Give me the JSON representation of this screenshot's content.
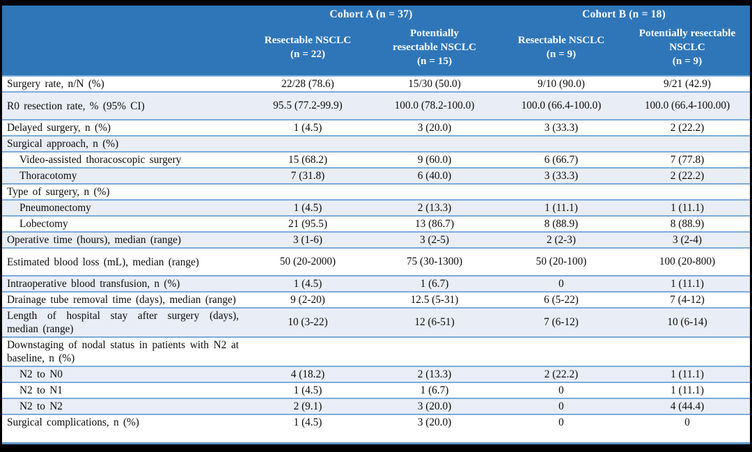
{
  "table": {
    "colors": {
      "header_bg": "#2F76B8",
      "header_text": "#FFFFFF",
      "stripe_row": "#E9EDF6",
      "row_border": "#7AABDB",
      "frame_border": "#000000",
      "body_text": "#0C0C0C"
    },
    "col_groups": [
      {
        "label": "Cohort A (n = 37)"
      },
      {
        "label": "Cohort B (n = 18)"
      }
    ],
    "col_headers": [
      {
        "lines": [
          "Resectable NSCLC",
          "(n = 22)"
        ]
      },
      {
        "lines": [
          "Potentially",
          "resectable NSCLC",
          "(n = 15)"
        ]
      },
      {
        "lines": [
          "Resectable NSCLC",
          "(n = 9)"
        ]
      },
      {
        "lines": [
          "Potentially resectable",
          "NSCLC",
          "(n = 9)"
        ]
      }
    ],
    "rows": [
      {
        "label": "Surgery rate, n/N (%)",
        "indent": false,
        "values": [
          "22/28 (78.6)",
          "15/30 (50.0)",
          "9/10 (90.0)",
          "9/21 (42.9)"
        ]
      },
      {
        "label": "R0 resection rate, % (95% CI)",
        "indent": false,
        "values": [
          "95.5 (77.2-99.9)",
          "100.0 (78.2-100.0)",
          "100.0 (66.4-100.0)",
          "100.0 (66.4-100.00)"
        ]
      },
      {
        "label": "Delayed surgery, n (%)",
        "indent": false,
        "values": [
          "1 (4.5)",
          "3 (20.0)",
          "3 (33.3)",
          "2 (22.2)"
        ]
      },
      {
        "label": "Surgical approach, n (%)",
        "indent": false,
        "values": [
          "",
          "",
          "",
          ""
        ]
      },
      {
        "label": "Video-assisted thoracoscopic surgery",
        "indent": true,
        "values": [
          "15 (68.2)",
          "9 (60.0)",
          "6 (66.7)",
          "7 (77.8)"
        ]
      },
      {
        "label": "Thoracotomy",
        "indent": true,
        "values": [
          "7 (31.8)",
          "6 (40.0)",
          "3 (33.3)",
          "2 (22.2)"
        ]
      },
      {
        "label": "Type of surgery, n (%)",
        "indent": false,
        "values": [
          "",
          "",
          "",
          ""
        ]
      },
      {
        "label": "Pneumonectomy",
        "indent": true,
        "values": [
          "1 (4.5)",
          "2 (13.3)",
          "1 (11.1)",
          "1 (11.1)"
        ]
      },
      {
        "label": "Lobectomy",
        "indent": true,
        "values": [
          "21 (95.5)",
          "13 (86.7)",
          "8 (88.9)",
          "8 (88.9)"
        ]
      },
      {
        "label": "Operative time (hours), median (range)",
        "indent": false,
        "values": [
          "3 (1-6)",
          "3 (2-5)",
          "2 (2-3)",
          "3 (2-4)"
        ]
      },
      {
        "label": "Estimated blood loss (mL), median (range)",
        "indent": false,
        "values": [
          "50 (20-2000)",
          "75 (30-1300)",
          "50 (20-100)",
          "100 (20-800)"
        ]
      },
      {
        "label": "Intraoperative blood transfusion, n (%)",
        "indent": false,
        "values": [
          "1 (4.5)",
          "1 (6.7)",
          "0",
          "1 (11.1)"
        ]
      },
      {
        "label": "Drainage tube removal time (days), median (range)",
        "indent": false,
        "values": [
          "9 (2-20)",
          "12.5 (5-31)",
          "6 (5-22)",
          "7 (4-12)"
        ]
      },
      {
        "label": "Length of hospital stay after surgery (days), median (range)",
        "indent": false,
        "values": [
          "10 (3-22)",
          "12 (6-51)",
          "7 (6-12)",
          "10 (6-14)"
        ]
      },
      {
        "label": "Downstaging of nodal status in patients with N2 at baseline, n (%)",
        "indent": false,
        "values": [
          "",
          "",
          "",
          ""
        ]
      },
      {
        "label": "N2 to N0",
        "indent": true,
        "values": [
          "4 (18.2)",
          "2 (13.3)",
          "2 (22.2)",
          "1 (11.1)"
        ]
      },
      {
        "label": "N2 to N1",
        "indent": true,
        "values": [
          "1 (4.5)",
          "1 (6.7)",
          "0",
          "1 (11.1)"
        ]
      },
      {
        "label": "N2 to N2",
        "indent": true,
        "values": [
          "2 (9.1)",
          "3 (20.0)",
          "0",
          "4 (44.4)"
        ]
      },
      {
        "label": "Surgical complications, n (%)",
        "indent": false,
        "values": [
          "1 (4.5)",
          "3 (20.0)",
          "0",
          "0"
        ]
      }
    ]
  }
}
